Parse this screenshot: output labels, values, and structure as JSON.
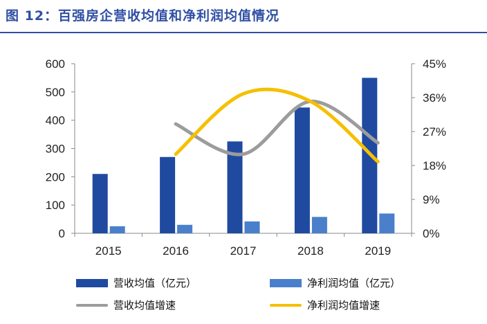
{
  "figure_title": "图 12：百强房企营收均值和净利润均值情况",
  "colors": {
    "revenue_bar": "#1f4aa0",
    "profit_bar": "#4a7fcb",
    "revenue_growth_line": "#9c9c9c",
    "profit_growth_line": "#f5c000",
    "title": "#2f4fa3"
  },
  "chart_data": {
    "type": "bar",
    "categories": [
      "2015",
      "2016",
      "2017",
      "2018",
      "2019"
    ],
    "series": [
      {
        "name": "营收均值（亿元）",
        "type": "bar",
        "axis": "left",
        "values": [
          210,
          270,
          325,
          445,
          550
        ]
      },
      {
        "name": "净利润均值（亿元）",
        "type": "bar",
        "axis": "left",
        "values": [
          25,
          30,
          42,
          58,
          70
        ]
      },
      {
        "name": "营收均值增速",
        "type": "line",
        "axis": "right",
        "values": [
          null,
          29,
          21,
          35,
          24
        ]
      },
      {
        "name": "净利润均值增速",
        "type": "line",
        "axis": "right",
        "values": [
          null,
          21,
          37,
          35,
          19
        ]
      }
    ],
    "ylim_left": [
      0,
      600
    ],
    "yticks_left": [
      "0",
      "100",
      "200",
      "300",
      "400",
      "500",
      "600"
    ],
    "ylim_right": [
      0,
      45
    ],
    "yticks_right": [
      "0%",
      "9%",
      "18%",
      "27%",
      "36%",
      "45%"
    ],
    "legend_position": "bottom",
    "grid": false
  }
}
